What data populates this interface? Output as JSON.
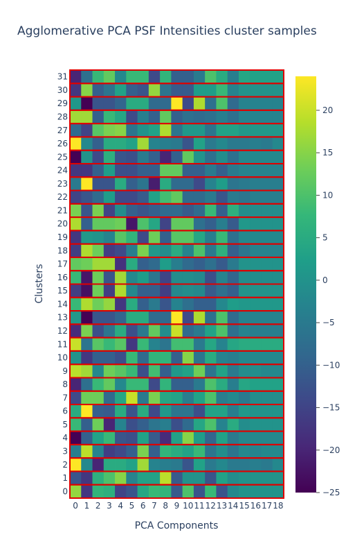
{
  "chart_data": {
    "type": "heatmap",
    "title": "Agglomerative PCA PSF Intensities cluster samples",
    "xlabel": "PCA Components",
    "ylabel": "Clusters",
    "x": [
      0,
      1,
      2,
      3,
      4,
      5,
      6,
      7,
      8,
      9,
      10,
      11,
      12,
      13,
      14,
      15,
      16,
      17,
      18
    ],
    "y": [
      0,
      1,
      2,
      3,
      4,
      5,
      6,
      7,
      8,
      9,
      10,
      11,
      12,
      13,
      14,
      15,
      16,
      17,
      18,
      19,
      20,
      21,
      22,
      23,
      24,
      25,
      26,
      27,
      28,
      29,
      30,
      31
    ],
    "zlim": [
      -25,
      24
    ],
    "colorbar_ticks": [
      20,
      15,
      10,
      5,
      0,
      -5,
      -10,
      -15,
      -20,
      -25
    ],
    "colorscale": "Viridis",
    "cluster_outline_color": "#e00000",
    "rows": [
      [
        16,
        -17,
        7,
        6,
        -15,
        -12,
        4,
        8,
        7,
        -11,
        10,
        -12,
        8,
        -12,
        -2,
        0,
        0,
        0,
        0
      ],
      [
        -12,
        -17,
        6,
        10,
        15,
        -3,
        3,
        3,
        19,
        -11,
        0,
        0,
        -12,
        3,
        -1,
        0,
        0,
        0,
        0
      ],
      [
        24,
        -2,
        -20,
        5,
        5,
        3,
        17,
        -3,
        -4,
        -5,
        -12,
        3,
        -5,
        -2,
        -5,
        -5,
        -4,
        -5,
        -2
      ],
      [
        -4,
        19,
        -3,
        -16,
        -14,
        -10,
        14,
        -10,
        7,
        5,
        3,
        8,
        -6,
        -1,
        -6,
        -2,
        -3,
        -2,
        -2
      ],
      [
        -25,
        -10,
        3,
        8,
        -12,
        -13,
        3,
        -11,
        -19,
        3,
        15,
        2,
        -9,
        3,
        -5,
        -2,
        -2,
        -2,
        -2
      ],
      [
        8,
        -10,
        13,
        -20,
        -3,
        -13,
        -10,
        -6,
        -4,
        -13,
        -8,
        4,
        10,
        -3,
        5,
        -1,
        0,
        0,
        0
      ],
      [
        5,
        24,
        -10,
        -11,
        5,
        -12,
        5,
        -14,
        1,
        -6,
        -6,
        -13,
        3,
        3,
        -4,
        1,
        0,
        0,
        0
      ],
      [
        -14,
        13,
        13,
        -8,
        4,
        20,
        -5,
        14,
        4,
        3,
        -4,
        3,
        10,
        -4,
        -2,
        -5,
        -1,
        -1,
        -1
      ],
      [
        -20,
        -7,
        8,
        12,
        -2,
        8,
        8,
        -14,
        7,
        -10,
        -10,
        -5,
        10,
        5,
        -4,
        4,
        3,
        3,
        3
      ],
      [
        19,
        17,
        -2,
        13,
        11,
        8,
        -13,
        9,
        -10,
        1,
        3,
        13,
        -6,
        3,
        -5,
        -1,
        -1,
        -2,
        -2
      ],
      [
        0,
        -17,
        -10,
        -10,
        -13,
        8,
        -8,
        7,
        7,
        -10,
        15,
        -6,
        5,
        -3,
        -4,
        -2,
        -2,
        -2,
        -2
      ],
      [
        20,
        -6,
        11,
        8,
        11,
        -17,
        8,
        -3,
        -6,
        9,
        9,
        -5,
        4,
        -3,
        4,
        5,
        5,
        5,
        5
      ],
      [
        -19,
        14,
        -13,
        -6,
        5,
        -13,
        -5,
        12,
        -1,
        20,
        -8,
        -5,
        3,
        10,
        -7,
        -3,
        -4,
        -4,
        -4
      ],
      [
        1,
        -25,
        -12,
        -12,
        -9,
        5,
        5,
        -8,
        -8,
        24,
        -14,
        18,
        -7,
        10,
        -8,
        -3,
        -3,
        -3,
        -3
      ],
      [
        8,
        18,
        13,
        16,
        -17,
        5,
        -10,
        -5,
        -12,
        -3,
        -7,
        -10,
        -10,
        -2,
        2,
        1,
        1,
        1,
        1
      ],
      [
        -16,
        -23,
        13,
        -16,
        18,
        -2,
        -10,
        -10,
        -16,
        -2,
        -1,
        -2,
        -11,
        -7,
        -10,
        0,
        0,
        0,
        0
      ],
      [
        8,
        -22,
        13,
        -12,
        17,
        -2,
        2,
        -6,
        -15,
        -1,
        -1,
        -2,
        -13,
        -3,
        -9,
        -1,
        -1,
        -1,
        -1
      ],
      [
        12,
        13,
        17,
        17,
        -18,
        5,
        -10,
        -8,
        2,
        -4,
        -8,
        -10,
        -7,
        -11,
        -5,
        0,
        0,
        0,
        0
      ],
      [
        -16,
        18,
        13,
        -16,
        -14,
        -4,
        14,
        1,
        -1,
        5,
        -3,
        10,
        -5,
        6,
        -10,
        -6,
        -3,
        -3,
        -3
      ],
      [
        -17,
        1,
        0,
        -3,
        11,
        7,
        -14,
        13,
        -10,
        11,
        11,
        4,
        -4,
        8,
        -7,
        -2,
        -2,
        -2,
        -2
      ],
      [
        18,
        -10,
        12,
        12,
        13,
        -22,
        10,
        4,
        -15,
        12,
        12,
        -7,
        -10,
        -4,
        -11,
        1,
        0,
        0,
        0
      ],
      [
        14,
        -12,
        14,
        -15,
        -1,
        -10,
        -12,
        -10,
        -8,
        -8,
        -11,
        -8,
        8,
        -10,
        6,
        -1,
        -1,
        -1,
        -1
      ],
      [
        -15,
        -12,
        -8,
        2,
        -14,
        -14,
        -11,
        3,
        9,
        12,
        -8,
        -8,
        -5,
        -12,
        -5,
        -6,
        -4,
        -4,
        -4
      ],
      [
        -5,
        24,
        -12,
        -12,
        5,
        -10,
        -6,
        -21,
        5,
        -8,
        -8,
        -14,
        -3,
        2,
        -6,
        -5,
        -4,
        -4,
        -4
      ],
      [
        -17,
        -17,
        -10,
        2,
        -13,
        -13,
        -10,
        -10,
        12,
        12,
        -10,
        -10,
        -5,
        -10,
        -5,
        -3,
        -3,
        -3,
        -3
      ],
      [
        -25,
        0,
        -14,
        6,
        -12,
        -13,
        -5,
        -10,
        -20,
        -10,
        12,
        0,
        -7,
        -1,
        -7,
        -2,
        -2,
        -2,
        -2
      ],
      [
        24,
        -2,
        -10,
        5,
        5,
        3,
        17,
        -3,
        -4,
        -5,
        -12,
        3,
        -5,
        -2,
        -5,
        -5,
        -4,
        -5,
        -2
      ],
      [
        -8,
        -15,
        11,
        14,
        15,
        -6,
        0,
        3,
        18,
        -6,
        1,
        1,
        -6,
        3,
        3,
        1,
        1,
        1,
        1
      ],
      [
        17,
        17,
        -10,
        8,
        4,
        -14,
        -4,
        -10,
        12,
        -10,
        -7,
        -8,
        -7,
        -4,
        -7,
        -3,
        -3,
        -3,
        -3
      ],
      [
        1,
        -25,
        -12,
        -12,
        -9,
        5,
        5,
        -8,
        -8,
        24,
        -14,
        18,
        -7,
        10,
        -8,
        -3,
        -3,
        -3,
        -3
      ],
      [
        -17,
        15,
        -10,
        -6,
        3,
        -10,
        -12,
        16,
        -6,
        -11,
        -11,
        2,
        2,
        8,
        -3,
        0,
        0,
        0,
        0
      ],
      [
        -20,
        -7,
        8,
        12,
        -2,
        8,
        8,
        -14,
        7,
        -10,
        -10,
        -5,
        10,
        5,
        -4,
        4,
        3,
        3,
        3
      ]
    ]
  }
}
